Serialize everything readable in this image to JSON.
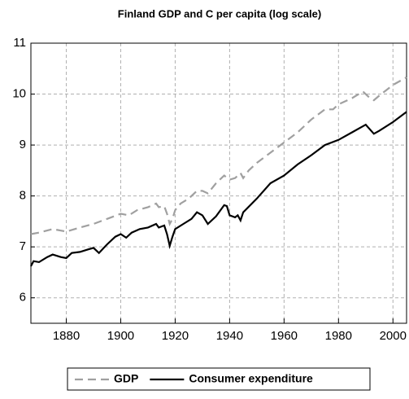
{
  "chart_data": {
    "type": "line",
    "title": "Finland GDP and C per capita (log scale)",
    "xlim": [
      1867,
      2005
    ],
    "xticks": [
      1880,
      1900,
      1920,
      1940,
      1960,
      1980,
      2000
    ],
    "ylim": [
      5.5,
      11
    ],
    "yticks": [
      6,
      7,
      8,
      9,
      10,
      11
    ],
    "grid": true,
    "legend": "bottom",
    "series": [
      {
        "name": "GDP",
        "color": "#a0a0a0",
        "dash": true,
        "x": [
          1867,
          1870,
          1875,
          1880,
          1885,
          1890,
          1895,
          1900,
          1903,
          1906,
          1910,
          1913,
          1914,
          1916,
          1917,
          1918,
          1919,
          1920,
          1922,
          1925,
          1928,
          1930,
          1932,
          1935,
          1938,
          1940,
          1942,
          1944,
          1945,
          1947,
          1950,
          1955,
          1960,
          1965,
          1970,
          1975,
          1978,
          1980,
          1985,
          1989,
          1991,
          1993,
          1995,
          2000,
          2005
        ],
        "values": [
          7.25,
          7.28,
          7.35,
          7.3,
          7.38,
          7.45,
          7.55,
          7.65,
          7.62,
          7.72,
          7.78,
          7.85,
          7.78,
          7.8,
          7.65,
          7.45,
          7.55,
          7.72,
          7.85,
          7.95,
          8.1,
          8.1,
          8.05,
          8.25,
          8.4,
          8.32,
          8.35,
          8.45,
          8.35,
          8.5,
          8.65,
          8.85,
          9.05,
          9.25,
          9.5,
          9.7,
          9.7,
          9.8,
          9.92,
          10.05,
          9.95,
          9.88,
          9.97,
          10.18,
          10.33
        ]
      },
      {
        "name": "Consumer expenditure",
        "color": "#000000",
        "dash": false,
        "x": [
          1867,
          1868,
          1870,
          1873,
          1875,
          1878,
          1880,
          1882,
          1885,
          1888,
          1890,
          1892,
          1895,
          1898,
          1900,
          1902,
          1904,
          1907,
          1910,
          1913,
          1914,
          1916,
          1917,
          1918,
          1919,
          1920,
          1923,
          1926,
          1928,
          1930,
          1932,
          1935,
          1938,
          1939,
          1940,
          1942,
          1943,
          1944,
          1945,
          1950,
          1955,
          1960,
          1965,
          1970,
          1975,
          1980,
          1985,
          1990,
          1993,
          1995,
          2000,
          2005
        ],
        "values": [
          6.62,
          6.72,
          6.7,
          6.8,
          6.85,
          6.8,
          6.78,
          6.88,
          6.9,
          6.95,
          6.98,
          6.88,
          7.05,
          7.2,
          7.25,
          7.18,
          7.28,
          7.35,
          7.38,
          7.45,
          7.38,
          7.42,
          7.25,
          7.02,
          7.2,
          7.35,
          7.45,
          7.55,
          7.68,
          7.62,
          7.45,
          7.6,
          7.82,
          7.8,
          7.62,
          7.58,
          7.62,
          7.52,
          7.68,
          7.95,
          8.25,
          8.4,
          8.62,
          8.8,
          9.0,
          9.1,
          9.25,
          9.4,
          9.22,
          9.28,
          9.45,
          9.65
        ]
      }
    ]
  }
}
